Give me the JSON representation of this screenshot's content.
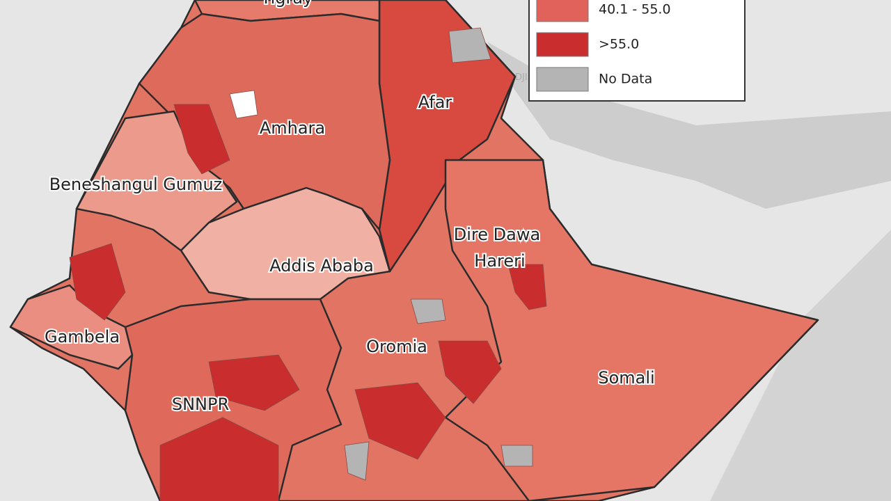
{
  "map": {
    "regions": [
      "Tigray",
      "Afar",
      "Amhara",
      "Beneshangul Gumuz",
      "Addis Ababa",
      "Dire Dawa",
      "Hareri",
      "Gambela",
      "Oromia",
      "Somali",
      "SNNPR"
    ],
    "neighbor_label": "DJI",
    "legend": [
      {
        "label": "40.1 - 55.0",
        "color": "#e0625a"
      },
      {
        "label": ">55.0",
        "color": "#c92d2d"
      },
      {
        "label": "No Data",
        "color": "#b4b4b4"
      }
    ]
  }
}
